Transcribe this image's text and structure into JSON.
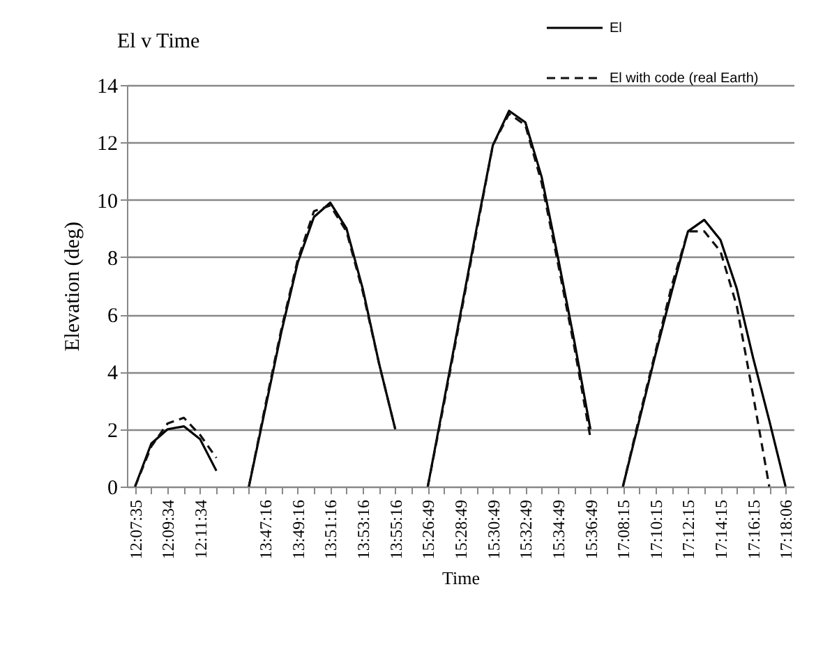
{
  "chart_data": {
    "type": "line",
    "title": "El v Time",
    "xlabel": "Time",
    "ylabel": "Elevation (deg)",
    "categories": [
      "12:07:35",
      null,
      "12:09:34",
      null,
      "12:11:34",
      null,
      null,
      null,
      "13:47:16",
      null,
      "13:49:16",
      null,
      "13:51:16",
      null,
      "13:53:16",
      null,
      "13:55:16",
      null,
      "15:26:49",
      null,
      "15:28:49",
      null,
      "15:30:49",
      null,
      "15:32:49",
      null,
      "15:34:49",
      null,
      "15:36:49",
      null,
      "17:08:15",
      null,
      "17:10:15",
      null,
      "17:12:15",
      null,
      "17:14:15",
      null,
      "17:16:15",
      null,
      "17:18:06"
    ],
    "series": [
      {
        "name": "El",
        "color": "#000000",
        "line_style": "solid",
        "values": [
          0,
          1.5,
          2.0,
          2.1,
          1.65,
          0.55,
          null,
          0,
          2.7,
          5.4,
          7.8,
          9.4,
          9.9,
          9.0,
          6.9,
          4.3,
          2.0,
          null,
          0,
          3.0,
          6.0,
          9.0,
          11.9,
          13.1,
          12.7,
          10.8,
          8.0,
          5.1,
          2.0,
          null,
          0,
          2.3,
          4.6,
          6.8,
          8.9,
          9.3,
          8.6,
          6.9,
          4.5,
          2.3,
          0
        ]
      },
      {
        "name": "El with code (real Earth)",
        "color": "#111111",
        "line_style": "dashed",
        "values": [
          0,
          1.4,
          2.2,
          2.4,
          1.8,
          1.0,
          null,
          0,
          2.8,
          5.5,
          7.9,
          9.6,
          9.8,
          8.9,
          6.8,
          4.3,
          2.0,
          null,
          0,
          2.9,
          5.9,
          8.9,
          11.9,
          13.0,
          12.6,
          10.6,
          7.8,
          4.9,
          1.7,
          null,
          0,
          2.4,
          4.7,
          7.0,
          8.9,
          8.9,
          8.2,
          6.3,
          3.2,
          0,
          null
        ]
      }
    ],
    "ylim": [
      0,
      14
    ],
    "yticks": [
      0,
      2,
      4,
      6,
      8,
      10,
      12,
      14
    ],
    "grid": "y",
    "legend": "top right"
  }
}
